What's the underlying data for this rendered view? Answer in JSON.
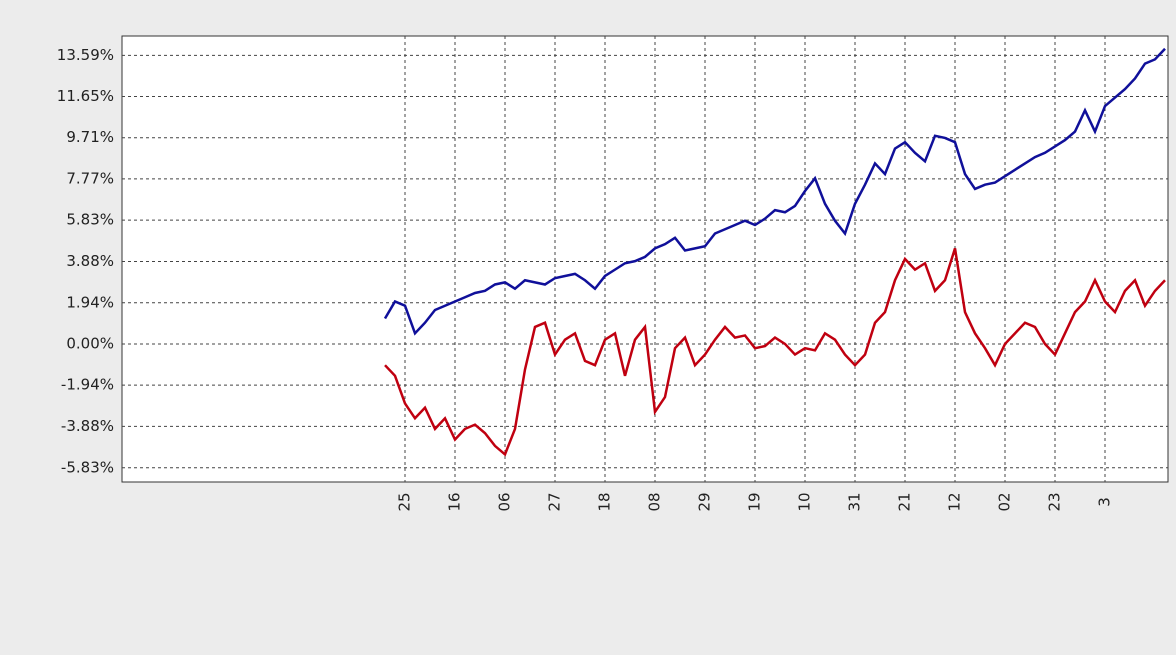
{
  "chart_data": {
    "type": "line",
    "categories": [
      null,
      null,
      "25",
      null,
      null,
      null,
      null,
      "16",
      null,
      null,
      null,
      null,
      "06",
      null,
      null,
      null,
      null,
      "27",
      null,
      null,
      null,
      null,
      "18",
      null,
      null,
      null,
      null,
      "08",
      null,
      null,
      null,
      null,
      "29",
      null,
      null,
      null,
      null,
      "19",
      null,
      null,
      null,
      null,
      "10",
      null,
      null,
      null,
      null,
      "31",
      null,
      null,
      null,
      null,
      "21",
      null,
      null,
      null,
      null,
      "12",
      null,
      null,
      null,
      null,
      "02",
      null,
      null,
      null,
      null,
      "23",
      null,
      null,
      null,
      null,
      "3",
      null,
      null,
      null,
      null,
      null,
      null
    ],
    "series": [
      {
        "color": "#10109a",
        "values": [
          1.2,
          2.0,
          1.8,
          0.5,
          1.0,
          1.6,
          1.8,
          2.0,
          2.2,
          2.4,
          2.5,
          2.8,
          2.9,
          2.6,
          3.0,
          2.9,
          2.8,
          3.1,
          3.2,
          3.3,
          3.0,
          2.6,
          3.2,
          3.5,
          3.8,
          3.9,
          4.1,
          4.5,
          4.7,
          5.0,
          4.4,
          4.5,
          4.6,
          5.2,
          5.4,
          5.6,
          5.8,
          5.6,
          5.9,
          6.3,
          6.2,
          6.5,
          7.2,
          7.8,
          6.6,
          5.8,
          5.2,
          6.6,
          7.5,
          8.5,
          8.0,
          9.2,
          9.5,
          9.0,
          8.6,
          9.8,
          9.7,
          9.5,
          8.0,
          7.3,
          7.5,
          7.6,
          7.9,
          8.2,
          8.5,
          8.8,
          9.0,
          9.3,
          9.6,
          10.0,
          11.0,
          10.0,
          11.2,
          11.6,
          12.0,
          12.5,
          13.2,
          13.4,
          13.9
        ]
      },
      {
        "color": "#c00010",
        "values": [
          -1.0,
          -1.5,
          -2.8,
          -3.5,
          -3.0,
          -4.0,
          -3.5,
          -4.5,
          -4.0,
          -3.8,
          -4.2,
          -4.8,
          -5.2,
          -4.0,
          -1.2,
          0.8,
          1.0,
          -0.5,
          0.2,
          0.5,
          -0.8,
          -1.0,
          0.2,
          0.5,
          -1.5,
          0.2,
          0.8,
          -3.2,
          -2.5,
          -0.2,
          0.3,
          -1.0,
          -0.5,
          0.2,
          0.8,
          0.3,
          0.4,
          -0.2,
          -0.1,
          0.3,
          0.0,
          -0.5,
          -0.2,
          -0.3,
          0.5,
          0.2,
          -0.5,
          -1.0,
          -0.5,
          1.0,
          1.5,
          3.0,
          4.0,
          3.5,
          3.8,
          2.5,
          3.0,
          4.5,
          1.5,
          0.5,
          -0.2,
          -1.0,
          0.0,
          0.5,
          1.0,
          0.8,
          0.0,
          -0.5,
          0.5,
          1.5,
          2.0,
          3.0,
          2.0,
          1.5,
          2.5,
          3.0,
          1.8,
          2.5,
          3.0
        ]
      }
    ],
    "ylim": [
      -6.5,
      14.5
    ],
    "yticks": [
      {
        "value": 13.59,
        "label": "13.59%"
      },
      {
        "value": 11.65,
        "label": "11.65%"
      },
      {
        "value": 9.71,
        "label": "9.71%"
      },
      {
        "value": 7.77,
        "label": "7.77%"
      },
      {
        "value": 5.83,
        "label": "5.83%"
      },
      {
        "value": 3.88,
        "label": "3.88%"
      },
      {
        "value": 1.94,
        "label": "1.94%"
      },
      {
        "value": 0,
        "label": "0.00%"
      },
      {
        "value": -1.94,
        "label": "-1.94%"
      },
      {
        "value": -3.88,
        "label": "-3.88%"
      },
      {
        "value": -5.83,
        "label": "-5.83%"
      }
    ],
    "grid": true
  }
}
